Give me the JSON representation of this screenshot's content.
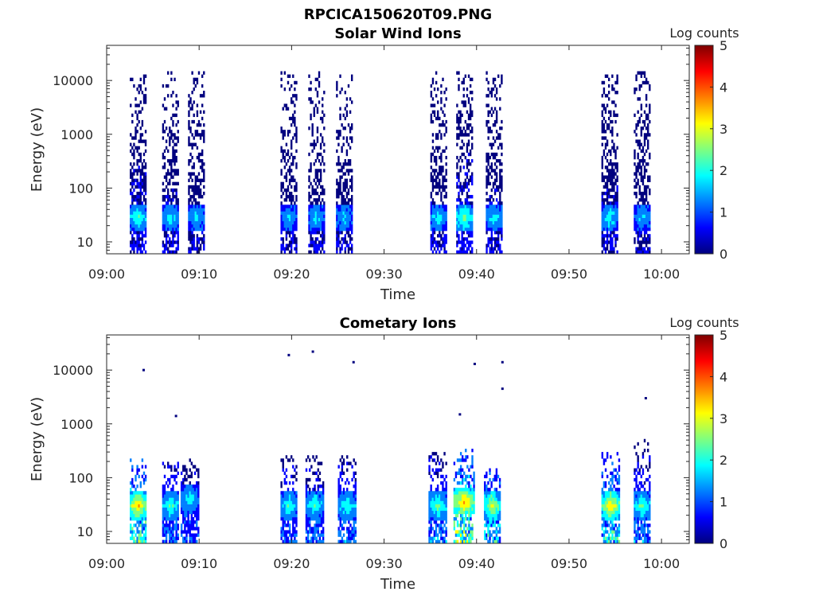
{
  "figure": {
    "title": "RPCICA150620T09.PNG"
  },
  "colormap": [
    "#00007f",
    "#0000ff",
    "#007fff",
    "#00ffff",
    "#7fff7f",
    "#ffff00",
    "#ff7f00",
    "#ff0000",
    "#7f0000"
  ],
  "chart_data": [
    {
      "type": "heatmap",
      "title": "Solar Wind Ions",
      "xlabel": "Time",
      "ylabel": "Energy (eV)",
      "y_scale": "log",
      "xlim": [
        "09:00",
        "10:03"
      ],
      "ylim": [
        6,
        45000
      ],
      "x_ticks": [
        "09:00",
        "09:10",
        "09:20",
        "09:30",
        "09:40",
        "09:50",
        "10:00"
      ],
      "y_ticks": [
        "10",
        "100",
        "1000",
        "10000"
      ],
      "colorbar": {
        "label": "Log counts",
        "range": [
          0,
          5
        ],
        "ticks": [
          "0",
          "1",
          "2",
          "3",
          "4",
          "5"
        ]
      },
      "bursts": [
        {
          "t_start": "09:02.5",
          "t_end": "09:04.3",
          "e_max": 12000,
          "peak_log_counts": 2.5,
          "peak_energy": 28
        },
        {
          "t_start": "09:06.0",
          "t_end": "09:07.8",
          "e_max": 14000,
          "peak_log_counts": 2.2,
          "peak_energy": 28
        },
        {
          "t_start": "09:08.8",
          "t_end": "09:10.6",
          "e_max": 15000,
          "peak_log_counts": 2.0,
          "peak_energy": 28
        },
        {
          "t_start": "09:18.8",
          "t_end": "09:20.6",
          "e_max": 15000,
          "peak_log_counts": 2.0,
          "peak_energy": 28
        },
        {
          "t_start": "09:21.8",
          "t_end": "09:23.6",
          "e_max": 14000,
          "peak_log_counts": 2.0,
          "peak_energy": 28
        },
        {
          "t_start": "09:24.8",
          "t_end": "09:26.6",
          "e_max": 13000,
          "peak_log_counts": 2.0,
          "peak_energy": 28
        },
        {
          "t_start": "09:35.0",
          "t_end": "09:36.8",
          "e_max": 15000,
          "peak_log_counts": 2.2,
          "peak_energy": 28
        },
        {
          "t_start": "09:37.8",
          "t_end": "09:39.6",
          "e_max": 14000,
          "peak_log_counts": 2.8,
          "peak_energy": 28
        },
        {
          "t_start": "09:41.0",
          "t_end": "09:42.8",
          "e_max": 15000,
          "peak_log_counts": 2.2,
          "peak_energy": 28
        },
        {
          "t_start": "09:53.5",
          "t_end": "09:55.3",
          "e_max": 12000,
          "peak_log_counts": 2.3,
          "peak_energy": 28
        },
        {
          "t_start": "09:57.0",
          "t_end": "09:58.8",
          "e_max": 14000,
          "peak_log_counts": 2.0,
          "peak_energy": 28
        }
      ]
    },
    {
      "type": "heatmap",
      "title": "Cometary Ions",
      "xlabel": "Time",
      "ylabel": "Energy (eV)",
      "y_scale": "log",
      "xlim": [
        "09:00",
        "10:03"
      ],
      "ylim": [
        6,
        45000
      ],
      "x_ticks": [
        "09:00",
        "09:10",
        "09:20",
        "09:30",
        "09:40",
        "09:50",
        "10:00"
      ],
      "y_ticks": [
        "10",
        "100",
        "1000",
        "10000"
      ],
      "colorbar": {
        "label": "Log counts",
        "range": [
          0,
          5
        ],
        "ticks": [
          "0",
          "1",
          "2",
          "3",
          "4",
          "5"
        ]
      },
      "bursts": [
        {
          "t_start": "09:02.5",
          "t_end": "09:04.3",
          "e_max": 220,
          "peak_log_counts": 3.8,
          "peak_energy": 30
        },
        {
          "t_start": "09:06.0",
          "t_end": "09:07.8",
          "e_max": 200,
          "peak_log_counts": 2.6,
          "peak_energy": 30
        },
        {
          "t_start": "09:08.0",
          "t_end": "09:10.0",
          "e_max": 220,
          "peak_log_counts": 2.2,
          "peak_energy": 40
        },
        {
          "t_start": "09:18.8",
          "t_end": "09:20.6",
          "e_max": 260,
          "peak_log_counts": 2.4,
          "peak_energy": 30
        },
        {
          "t_start": "09:21.5",
          "t_end": "09:23.5",
          "e_max": 250,
          "peak_log_counts": 2.4,
          "peak_energy": 30
        },
        {
          "t_start": "09:25.0",
          "t_end": "09:27.0",
          "e_max": 260,
          "peak_log_counts": 2.5,
          "peak_energy": 30
        },
        {
          "t_start": "09:34.8",
          "t_end": "09:36.8",
          "e_max": 280,
          "peak_log_counts": 2.6,
          "peak_energy": 30
        },
        {
          "t_start": "09:37.5",
          "t_end": "09:39.8",
          "e_max": 320,
          "peak_log_counts": 4.0,
          "peak_energy": 35
        },
        {
          "t_start": "09:40.8",
          "t_end": "09:42.6",
          "e_max": 180,
          "peak_log_counts": 3.3,
          "peak_energy": 30
        },
        {
          "t_start": "09:53.5",
          "t_end": "09:55.5",
          "e_max": 300,
          "peak_log_counts": 3.6,
          "peak_energy": 30
        },
        {
          "t_start": "09:57.0",
          "t_end": "09:58.8",
          "e_max": 500,
          "peak_log_counts": 2.6,
          "peak_energy": 30
        }
      ],
      "isolated_points": [
        {
          "t": "09:04.0",
          "e": 10000
        },
        {
          "t": "09:07.5",
          "e": 1400
        },
        {
          "t": "09:19.7",
          "e": 19000
        },
        {
          "t": "09:22.3",
          "e": 22000
        },
        {
          "t": "09:26.7",
          "e": 14000
        },
        {
          "t": "09:38.2",
          "e": 1500
        },
        {
          "t": "09:39.8",
          "e": 13000
        },
        {
          "t": "09:42.8",
          "e": 14000
        },
        {
          "t": "09:42.8",
          "e": 4500
        },
        {
          "t": "09:58.3",
          "e": 3000
        }
      ]
    }
  ]
}
